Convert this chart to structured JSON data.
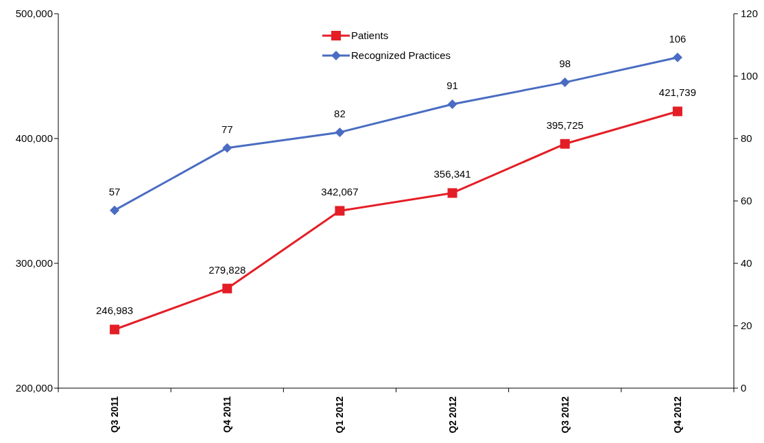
{
  "chart_data": {
    "type": "line",
    "categories": [
      "Q3 2011",
      "Q4 2011",
      "Q1 2012",
      "Q2 2012",
      "Q3 2012",
      "Q4 2012"
    ],
    "series": [
      {
        "name": "Patients",
        "color": "#e41e26",
        "marker": "square",
        "values": [
          246983,
          279828,
          342067,
          356341,
          395725,
          421739
        ],
        "value_labels": [
          "246,983",
          "279,828",
          "342,067",
          "356,341",
          "395,725",
          "421,739"
        ]
      },
      {
        "name": "Recognized Practices",
        "color": "#4a6cc2",
        "marker": "diamond",
        "axis": "y2",
        "values": [
          57,
          77,
          82,
          91,
          98,
          106
        ]
      }
    ],
    "ylim": [
      200000,
      500000
    ],
    "yticks": [
      {
        "value": 200000,
        "label": "200,000"
      },
      {
        "value": 300000,
        "label": "300,000"
      },
      {
        "value": 400000,
        "label": "400,000"
      },
      {
        "value": 500000,
        "label": "500,000"
      }
    ],
    "y2lim": [
      0,
      120
    ],
    "y2ticks": [
      0,
      20,
      40,
      60,
      80,
      100,
      120
    ],
    "data_labels": true,
    "legend": "top",
    "grid": false,
    "line_style": "solid"
  }
}
